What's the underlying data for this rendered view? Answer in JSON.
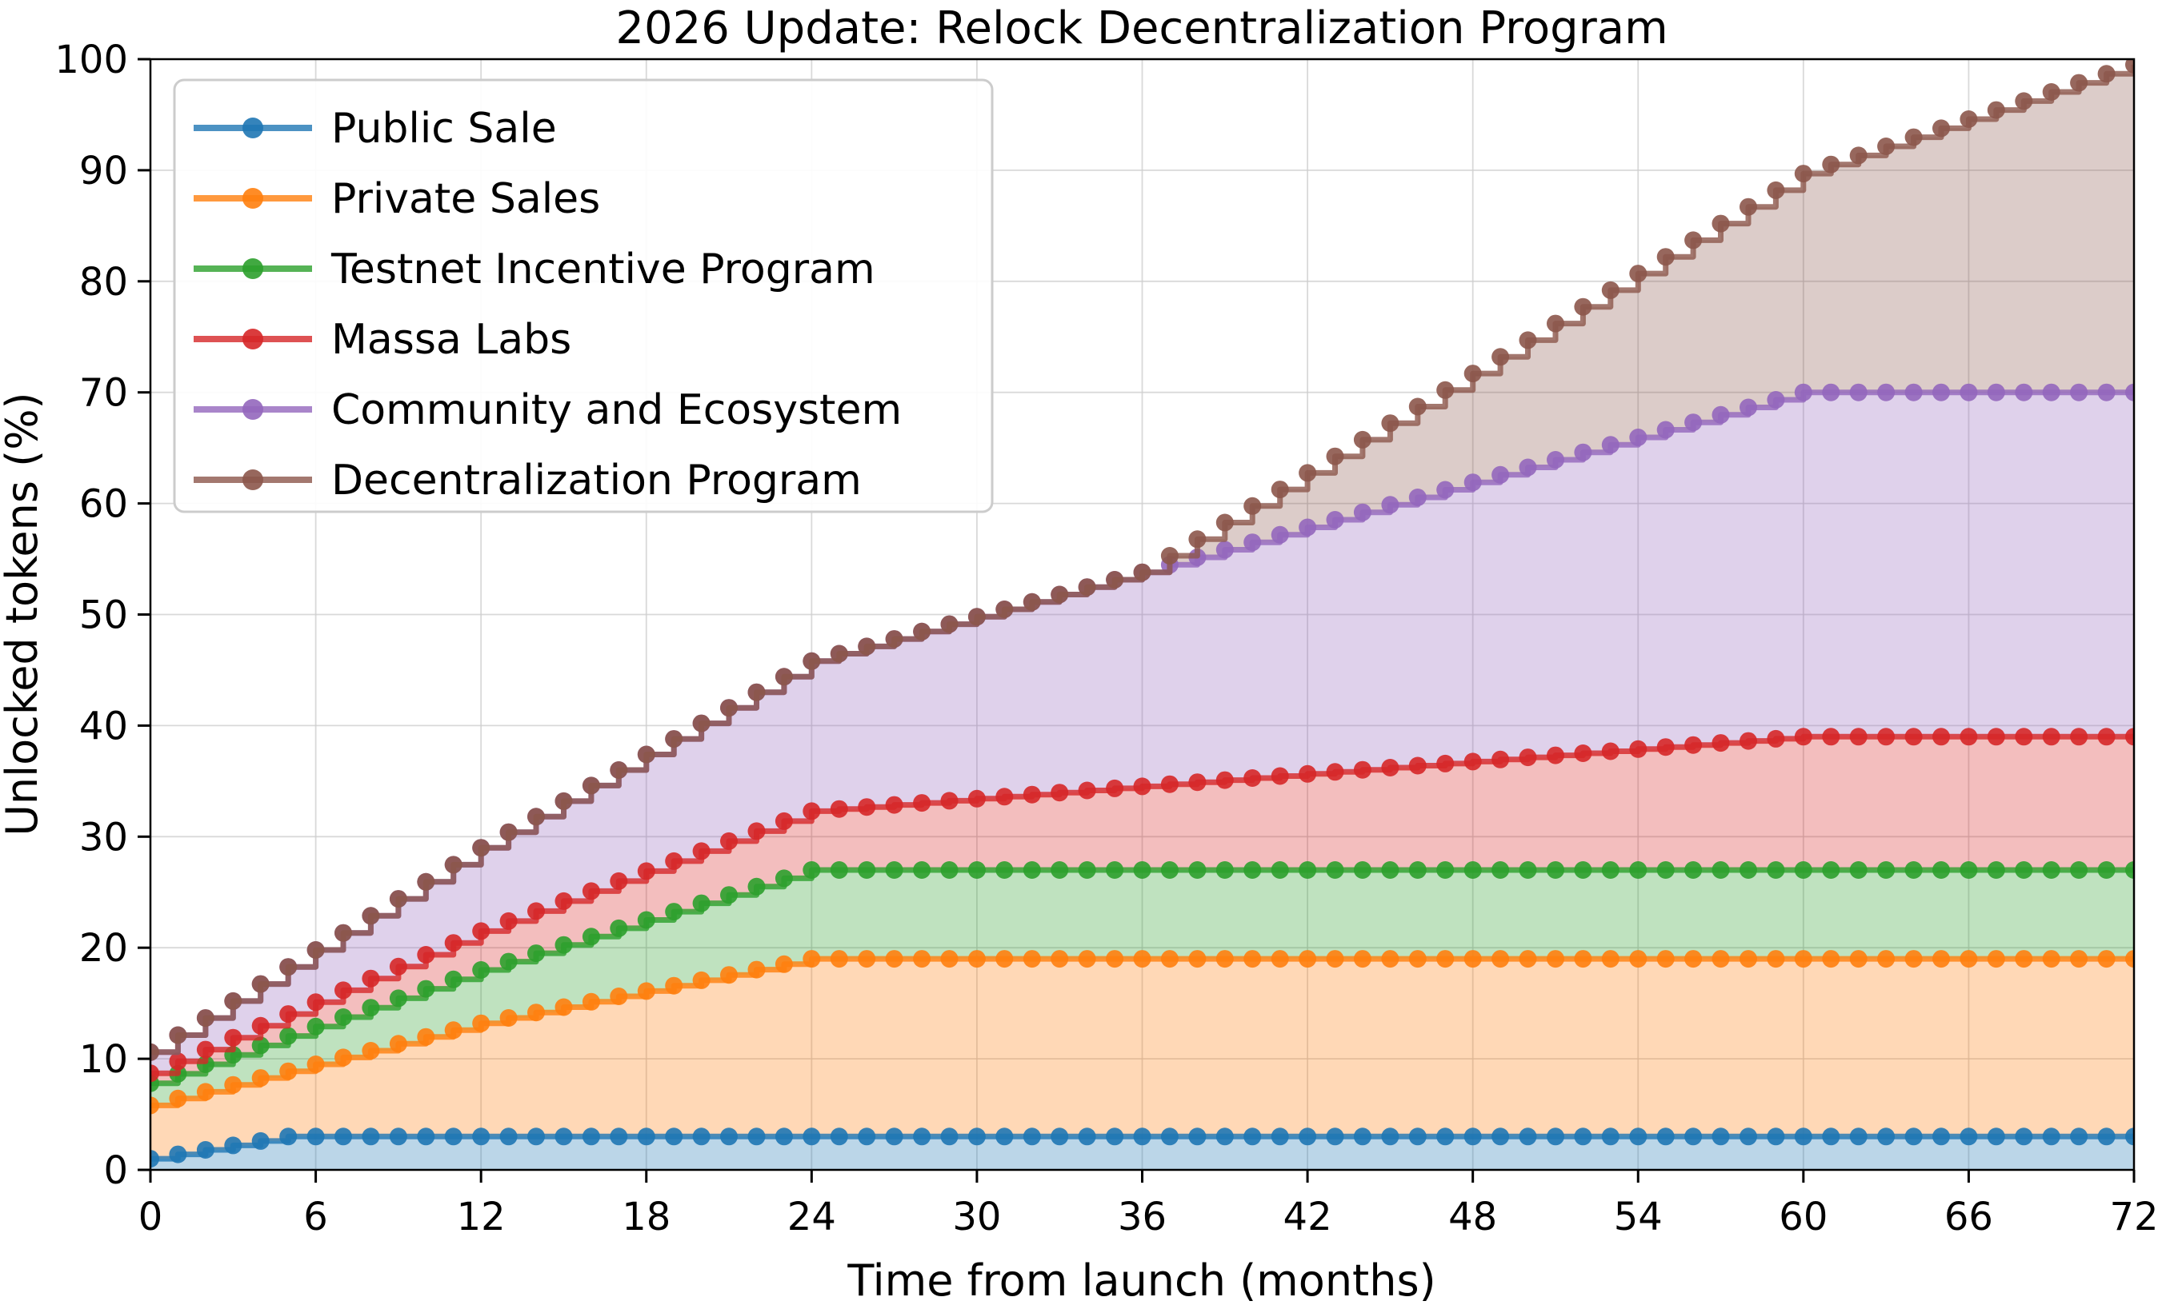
{
  "chart_data": {
    "type": "area",
    "variant": "stacked-step-area-with-circle-markers",
    "title": "2026 Update: Relock Decentralization Program",
    "xlabel": "Time from launch (months)",
    "ylabel": "Unlocked tokens (%)",
    "xlim": [
      0,
      72
    ],
    "ylim": [
      0,
      100
    ],
    "xticks": [
      0,
      6,
      12,
      18,
      24,
      30,
      36,
      42,
      48,
      54,
      60,
      66,
      72
    ],
    "yticks": [
      0,
      10,
      20,
      30,
      40,
      50,
      60,
      70,
      80,
      90,
      100
    ],
    "grid": true,
    "legend_position": "upper left",
    "months_step": 1,
    "values_are": "cumulative stacked percent of supply unlocked (top edge of each band), months 0 through 72",
    "style": {
      "background": "#ffffff",
      "grid_color": "#cccccc",
      "spine_color": "#000000",
      "legend_border_color": "#cccccc",
      "legend_background": "#ffffff",
      "fill_alpha": 0.3,
      "line_alpha": 0.8,
      "marker_alpha": 0.9
    },
    "series": [
      {
        "name": "Public Sale",
        "color": "#1f77b4",
        "cumulative": [
          1,
          1.4,
          1.8,
          2.2,
          2.6,
          3,
          3,
          3,
          3,
          3,
          3,
          3,
          3,
          3,
          3,
          3,
          3,
          3,
          3,
          3,
          3,
          3,
          3,
          3,
          3,
          3,
          3,
          3,
          3,
          3,
          3,
          3,
          3,
          3,
          3,
          3,
          3,
          3,
          3,
          3,
          3,
          3,
          3,
          3,
          3,
          3,
          3,
          3,
          3,
          3,
          3,
          3,
          3,
          3,
          3,
          3,
          3,
          3,
          3,
          3,
          3,
          3,
          3,
          3,
          3,
          3,
          3,
          3,
          3,
          3,
          3,
          3,
          3
        ]
      },
      {
        "name": "Private Sales",
        "color": "#ff7f0e",
        "cumulative": [
          5.8,
          6.42,
          7.03,
          7.65,
          8.27,
          8.88,
          9.5,
          10.12,
          10.73,
          11.35,
          11.97,
          12.58,
          13.2,
          13.68,
          14.17,
          14.65,
          15.13,
          15.62,
          16.1,
          16.58,
          17.07,
          17.55,
          18.03,
          18.52,
          19,
          19,
          19,
          19,
          19,
          19,
          19,
          19,
          19,
          19,
          19,
          19,
          19,
          19,
          19,
          19,
          19,
          19,
          19,
          19,
          19,
          19,
          19,
          19,
          19,
          19,
          19,
          19,
          19,
          19,
          19,
          19,
          19,
          19,
          19,
          19,
          19,
          19,
          19,
          19,
          19,
          19,
          19,
          19,
          19,
          19,
          19,
          19,
          19
        ]
      },
      {
        "name": "Testnet Incentive Program",
        "color": "#2ca02c",
        "cumulative": [
          7.8,
          8.65,
          9.5,
          10.35,
          11.2,
          12.05,
          12.9,
          13.75,
          14.6,
          15.45,
          16.3,
          17.15,
          18,
          18.75,
          19.5,
          20.25,
          21,
          21.75,
          22.5,
          23.25,
          24,
          24.75,
          25.5,
          26.25,
          27,
          27,
          27,
          27,
          27,
          27,
          27,
          27,
          27,
          27,
          27,
          27,
          27,
          27,
          27,
          27,
          27,
          27,
          27,
          27,
          27,
          27,
          27,
          27,
          27,
          27,
          27,
          27,
          27,
          27,
          27,
          27,
          27,
          27,
          27,
          27,
          27,
          27,
          27,
          27,
          27,
          27,
          27,
          27,
          27,
          27,
          27,
          27,
          27
        ]
      },
      {
        "name": "Massa Labs",
        "color": "#d62728",
        "cumulative": [
          8.7,
          9.77,
          10.83,
          11.9,
          12.97,
          14.03,
          15.1,
          16.17,
          17.23,
          18.3,
          19.37,
          20.43,
          21.5,
          22.4,
          23.3,
          24.2,
          25.1,
          26,
          26.9,
          27.8,
          28.7,
          29.6,
          30.5,
          31.4,
          32.3,
          32.49,
          32.67,
          32.86,
          33.04,
          33.23,
          33.42,
          33.6,
          33.79,
          33.97,
          34.16,
          34.35,
          34.53,
          34.72,
          34.9,
          35.09,
          35.28,
          35.46,
          35.65,
          35.83,
          36.02,
          36.21,
          36.39,
          36.58,
          36.76,
          36.95,
          37.14,
          37.32,
          37.51,
          37.69,
          37.88,
          38.07,
          38.25,
          38.44,
          38.62,
          38.81,
          39,
          39,
          39,
          39,
          39,
          39,
          39,
          39,
          39,
          39,
          39,
          39,
          39
        ]
      },
      {
        "name": "Community and Ecosystem",
        "color": "#9467bd",
        "cumulative": [
          10.6,
          12.13,
          13.67,
          15.2,
          16.73,
          18.27,
          19.8,
          21.33,
          22.87,
          24.4,
          25.93,
          27.47,
          29,
          30.4,
          31.8,
          33.2,
          34.6,
          36,
          37.4,
          38.8,
          40.2,
          41.6,
          43,
          44.4,
          45.8,
          46.47,
          47.13,
          47.8,
          48.47,
          49.13,
          49.8,
          50.47,
          51.13,
          51.8,
          52.47,
          53.13,
          53.8,
          54.48,
          55.15,
          55.83,
          56.5,
          57.18,
          57.85,
          58.53,
          59.2,
          59.88,
          60.55,
          61.23,
          61.9,
          62.58,
          63.25,
          63.93,
          64.6,
          65.28,
          65.95,
          66.63,
          67.3,
          67.98,
          68.65,
          69.33,
          70,
          70,
          70,
          70,
          70,
          70,
          70,
          70,
          70,
          70,
          70,
          70,
          70
        ]
      },
      {
        "name": "Decentralization Program",
        "color": "#8c564b",
        "cumulative": [
          10.6,
          12.13,
          13.67,
          15.2,
          16.73,
          18.27,
          19.8,
          21.33,
          22.87,
          24.4,
          25.93,
          27.47,
          29,
          30.4,
          31.8,
          33.2,
          34.6,
          36,
          37.4,
          38.8,
          40.2,
          41.6,
          43,
          44.4,
          45.8,
          46.47,
          47.13,
          47.8,
          48.47,
          49.13,
          49.8,
          50.47,
          51.13,
          51.8,
          52.47,
          53.13,
          53.8,
          55.29,
          56.78,
          58.28,
          59.77,
          61.26,
          62.75,
          64.24,
          65.74,
          67.23,
          68.72,
          70.21,
          71.7,
          73.2,
          74.7,
          76.2,
          77.7,
          79.2,
          80.7,
          82.2,
          83.7,
          85.2,
          86.7,
          88.2,
          89.7,
          90.52,
          91.33,
          92.15,
          92.97,
          93.78,
          94.6,
          95.42,
          96.23,
          97.05,
          97.87,
          98.68,
          99.5
        ]
      }
    ]
  }
}
